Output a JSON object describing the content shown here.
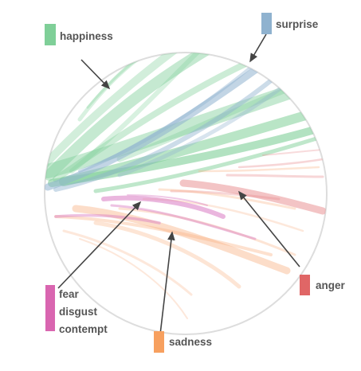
{
  "legend": {
    "happiness": {
      "label": "happiness",
      "color": "#7fcf98"
    },
    "surprise": {
      "label": "surprise",
      "color": "#8fb2cf"
    },
    "anger": {
      "label": "anger",
      "color": "#e06666"
    },
    "fear_group": {
      "labels": [
        "fear",
        "disgust",
        "contempt"
      ],
      "color": "#d966b0"
    },
    "sadness": {
      "label": "sadness",
      "color": "#f7a05f"
    }
  },
  "stroke_colors": {
    "happiness": "#7fcf98",
    "surprise": "#8fb2cf",
    "anger": "#e8898c",
    "fear": "#d97ac2",
    "sadness": "#f9b487",
    "circle": "#dddddd",
    "arrow": "#444444"
  }
}
